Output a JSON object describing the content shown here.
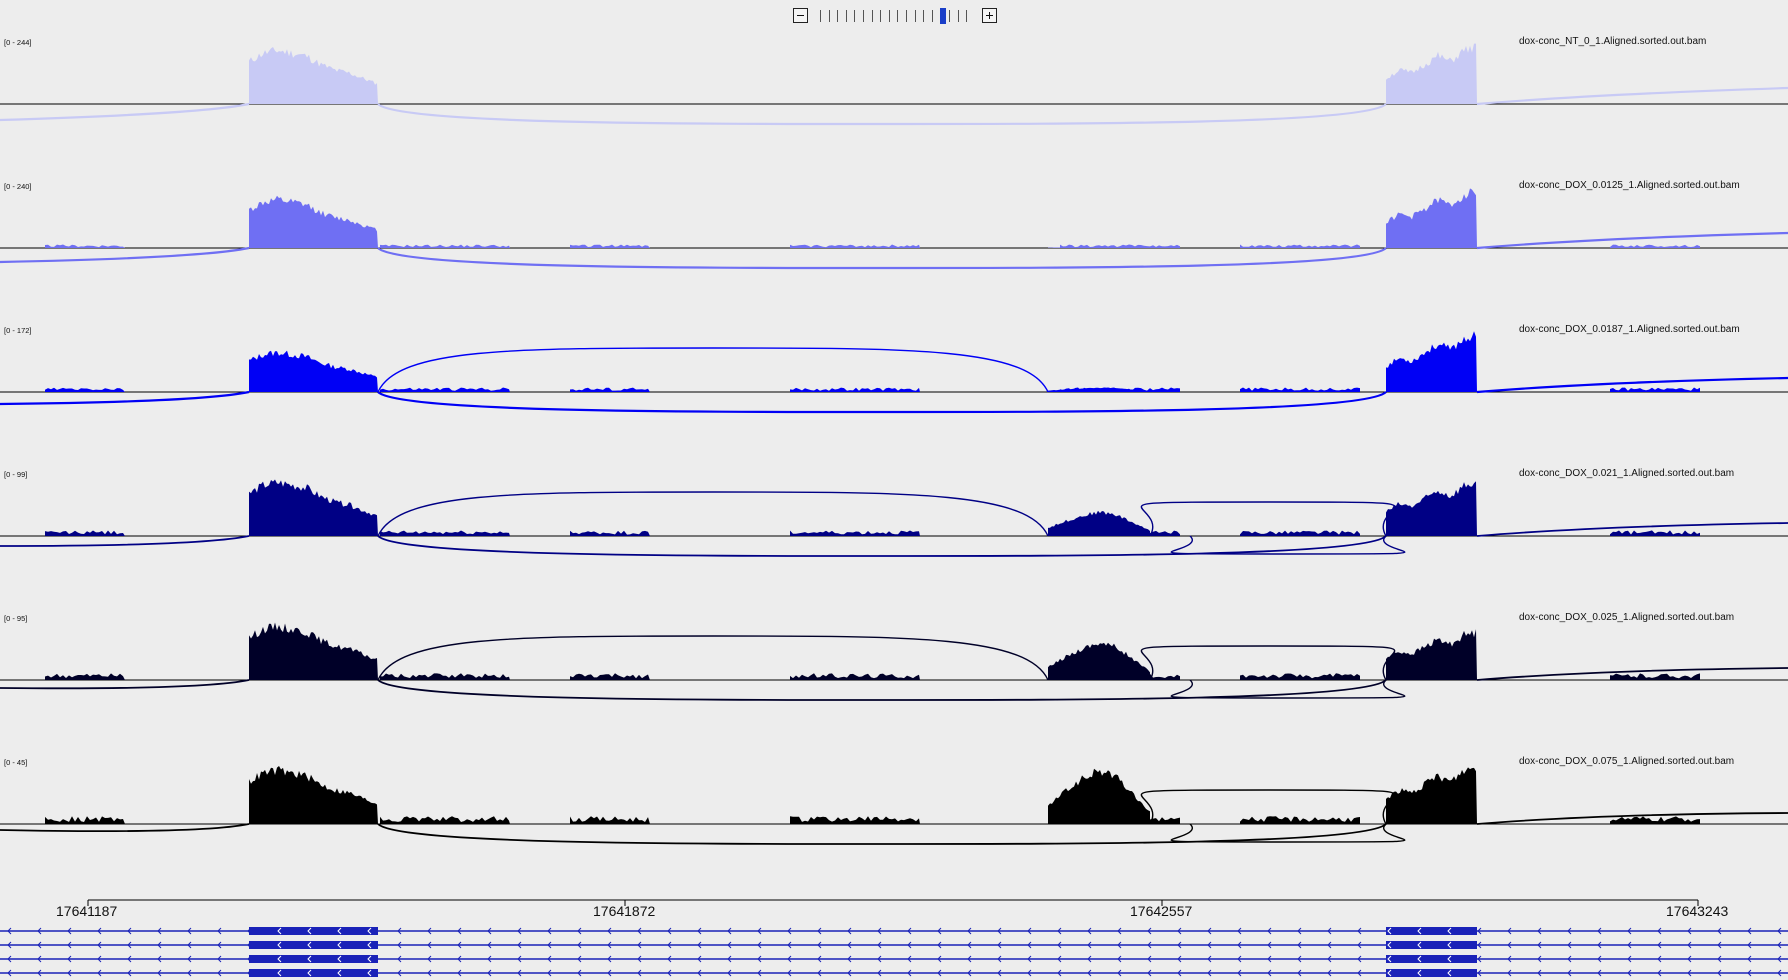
{
  "zoom": {
    "minus_icon": "minus-icon",
    "plus_icon": "plus-icon",
    "ticks": 18,
    "level": 14
  },
  "tracks": [
    {
      "name": "dox-conc_NT_0_1.Aligned.sorted.out.bam",
      "range": "[0 - 244]",
      "color": "#c8caf5"
    },
    {
      "name": "dox-conc_DOX_0.0125_1.Aligned.sorted.out.bam",
      "range": "[0 - 240]",
      "color": "#6f6ff3"
    },
    {
      "name": "dox-conc_DOX_0.0187_1.Aligned.sorted.out.bam",
      "range": "[0 - 172]",
      "color": "#0000f5"
    },
    {
      "name": "dox-conc_DOX_0.021_1.Aligned.sorted.out.bam",
      "range": "[0 - 99]",
      "color": "#000085"
    },
    {
      "name": "dox-conc_DOX_0.025_1.Aligned.sorted.out.bam",
      "range": "[0 - 95]",
      "color": "#000028"
    },
    {
      "name": "dox-conc_DOX_0.075_1.Aligned.sorted.out.bam",
      "range": "[0 - 45]",
      "color": "#000000"
    }
  ],
  "ruler": {
    "labels": [
      "17641187",
      "17641872",
      "17642557",
      "17643243"
    ]
  },
  "gene": {
    "color": "#1a22b8",
    "strand": "minus",
    "track_count": 4
  }
}
